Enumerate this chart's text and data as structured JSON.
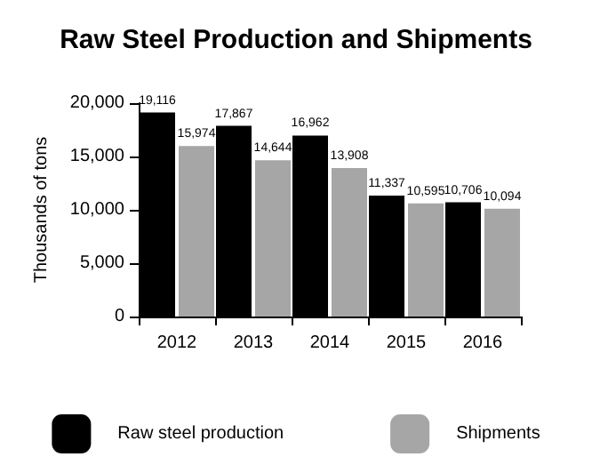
{
  "chart_data": {
    "type": "bar",
    "title": "Raw Steel Production and Shipments",
    "ylabel": "Thousands of tons",
    "categories": [
      "2012",
      "2013",
      "2014",
      "2015",
      "2016"
    ],
    "series": [
      {
        "name": "Raw steel production",
        "color": "#000000",
        "values": [
          19116,
          17867,
          16962,
          11337,
          10706
        ],
        "value_labels": [
          "19,116",
          "17,867",
          "16,962",
          "11,337",
          "10,706"
        ]
      },
      {
        "name": "Shipments",
        "color": "#a6a6a6",
        "values": [
          15974,
          14644,
          13908,
          10595,
          10094
        ],
        "value_labels": [
          "15,974",
          "14,644",
          "13,908",
          "10,595",
          "10,094"
        ]
      }
    ],
    "ylim": [
      0,
      20000
    ],
    "yticks": [
      {
        "value": 0,
        "label": "0"
      },
      {
        "value": 5000,
        "label": "5,000"
      },
      {
        "value": 10000,
        "label": "10,000"
      },
      {
        "value": 15000,
        "label": "15,000"
      },
      {
        "value": 20000,
        "label": "20,000"
      }
    ],
    "grid": false,
    "legend": "bottom"
  }
}
